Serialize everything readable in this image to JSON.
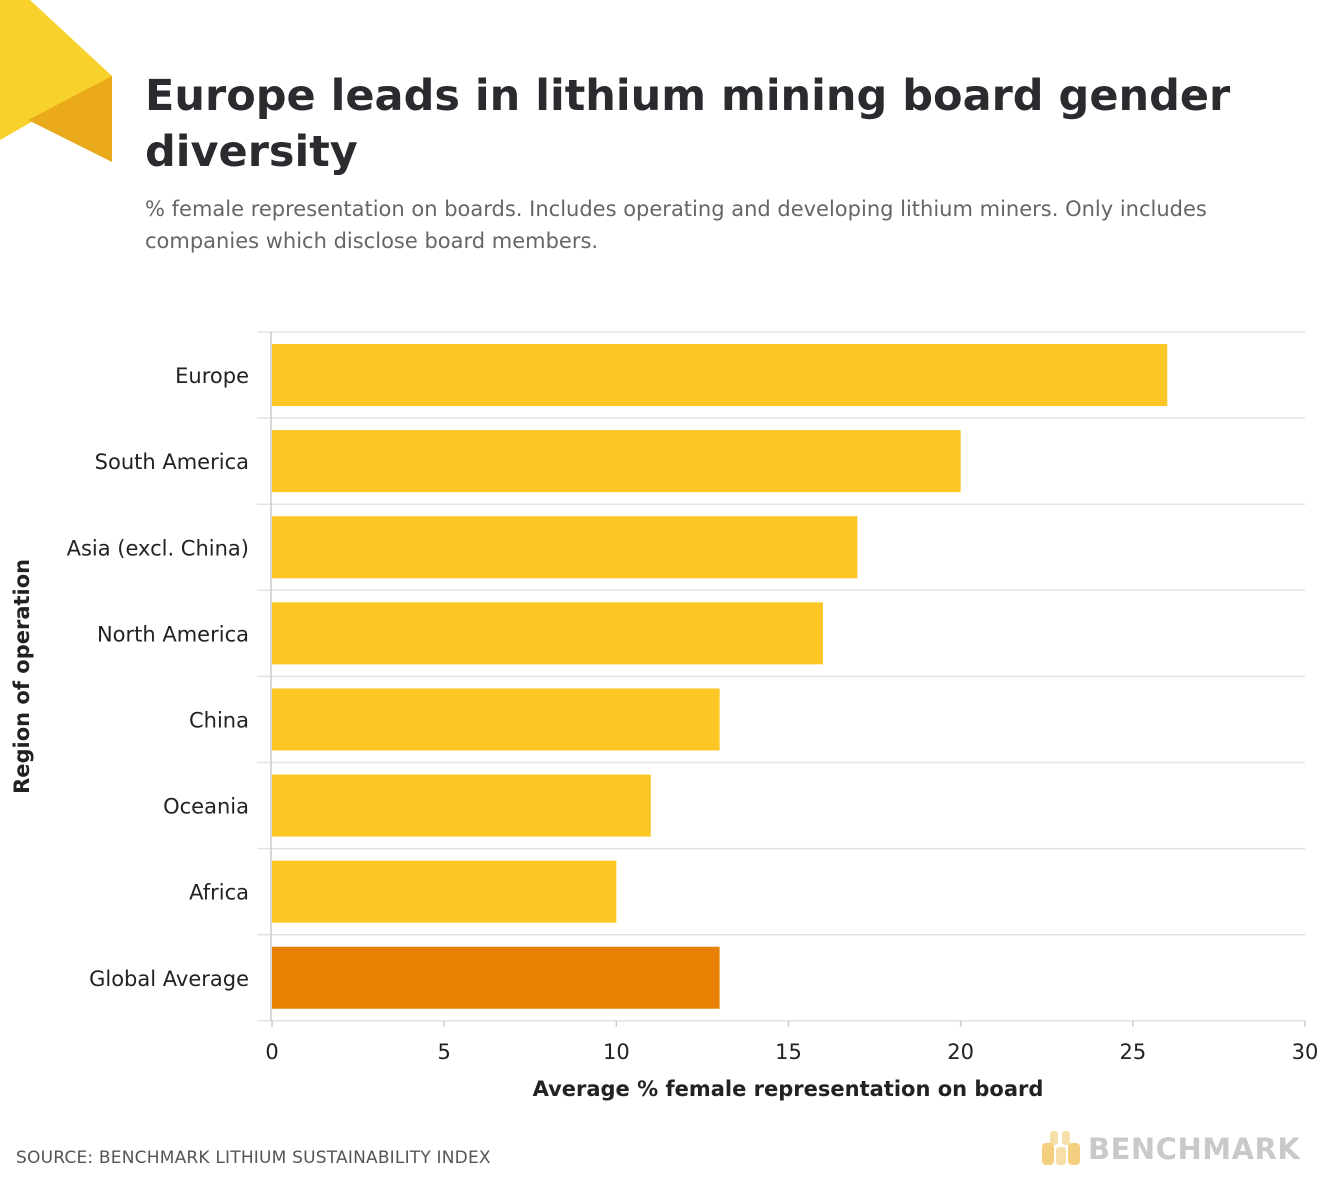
{
  "title": "Europe leads in lithium mining board gender diversity",
  "subtitle": "% female representation on boards. Includes operating and developing lithium miners. Only includes companies which disclose board members.",
  "source": "SOURCE: BENCHMARK LITHIUM SUSTAINABILITY INDEX",
  "logo": {
    "text": "BENCHMARK",
    "icon": "benchmark-logo-icon"
  },
  "colors": {
    "bar": "#FCC724",
    "highlight_bar": "#E88003",
    "corner_light": "#F8D12A",
    "corner_dark": "#EAAA1C",
    "grid": "#e3e3e3",
    "axis": "#cccccc"
  },
  "chart_data": {
    "type": "bar",
    "orientation": "horizontal",
    "categories": [
      "Europe",
      "South America",
      "Asia (excl. China)",
      "North America",
      "China",
      "Oceania",
      "Africa",
      "Global Average"
    ],
    "values": [
      26,
      20,
      17,
      16,
      13,
      11,
      10,
      13
    ],
    "highlight": [
      "Global Average"
    ],
    "xlabel": "Average % female representation on board",
    "ylabel": "Region of operation",
    "xlim": [
      0,
      30
    ],
    "xticks": [
      "0",
      "5",
      "10",
      "15",
      "20",
      "25",
      "30"
    ],
    "grid": "horizontal category separators",
    "legend": "none"
  }
}
